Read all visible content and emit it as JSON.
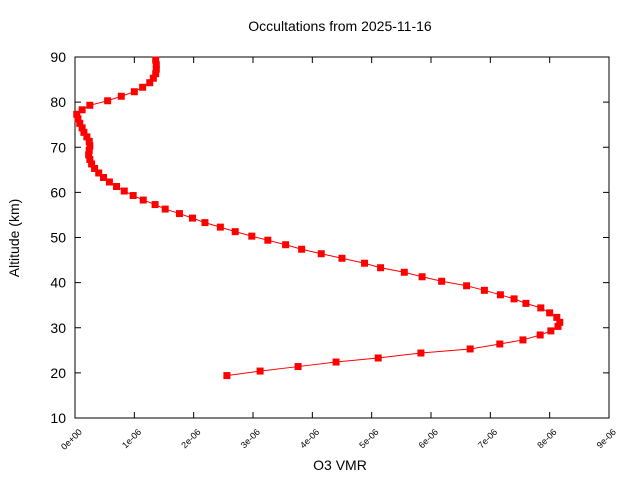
{
  "chart_data": {
    "type": "line",
    "title": "Occultations from 2025-11-16",
    "x_label": "O3 VMR",
    "y_label": "Altitude (km)",
    "color": "#ff0000",
    "x": [
      2.56e-06,
      3.12e-06,
      3.76e-06,
      4.4e-06,
      5.11e-06,
      5.83e-06,
      6.66e-06,
      7.16e-06,
      7.55e-06,
      7.84e-06,
      8.02e-06,
      8.14e-06,
      8.17e-06,
      8.12e-06,
      8e-06,
      7.85e-06,
      7.6e-06,
      7.4e-06,
      7.17e-06,
      6.9e-06,
      6.6e-06,
      6.18e-06,
      5.85e-06,
      5.55e-06,
      5.15e-06,
      4.88e-06,
      4.5e-06,
      4.15e-06,
      3.82e-06,
      3.55e-06,
      3.25e-06,
      2.98e-06,
      2.7e-06,
      2.45e-06,
      2.19e-06,
      1.98e-06,
      1.76e-06,
      1.52e-06,
      1.35e-06,
      1.15e-06,
      9.8e-07,
      8.3e-07,
      7e-07,
      5.8e-07,
      4.8e-07,
      4e-07,
      3.3e-07,
      2.8e-07,
      2.5e-07,
      2.3e-07,
      2.4e-07,
      2.5e-07,
      2.4e-07,
      2e-07,
      1.5e-07,
      1.2e-07,
      8e-08,
      5e-08,
      3e-08,
      1.2e-07,
      2.5e-07,
      5.5e-07,
      7.8e-07,
      1e-06,
      1.14e-06,
      1.26e-06,
      1.32e-06,
      1.36e-06,
      1.37e-06,
      1.37e-06,
      1.36e-06
    ],
    "values": [
      19.4,
      20.4,
      21.4,
      22.4,
      23.3,
      24.4,
      25.3,
      26.4,
      27.3,
      28.4,
      29.3,
      30.3,
      31.2,
      32.3,
      33.3,
      34.4,
      35.4,
      36.4,
      37.3,
      38.3,
      39.3,
      40.3,
      41.3,
      42.3,
      43.3,
      44.3,
      45.4,
      46.4,
      47.4,
      48.4,
      49.4,
      50.3,
      51.3,
      52.3,
      53.3,
      54.3,
      55.3,
      56.3,
      57.3,
      58.3,
      59.3,
      60.3,
      61.3,
      62.3,
      63.3,
      64.3,
      65.3,
      66.3,
      67.3,
      68.3,
      69.3,
      70.3,
      71.3,
      72.3,
      73.3,
      74.3,
      75.3,
      76.3,
      77.3,
      78.3,
      79.3,
      80.3,
      81.3,
      82.3,
      83.3,
      84.3,
      85.3,
      86.3,
      87.3,
      88.3,
      89.3
    ],
    "xlim": [
      0,
      9e-06
    ],
    "xticks": [
      {
        "value": 0,
        "label": "0e+00"
      },
      {
        "value": 1e-06,
        "label": "1e-06"
      },
      {
        "value": 2e-06,
        "label": "2e-06"
      },
      {
        "value": 3e-06,
        "label": "3e-06"
      },
      {
        "value": 4e-06,
        "label": "4e-06"
      },
      {
        "value": 5e-06,
        "label": "5e-06"
      },
      {
        "value": 6e-06,
        "label": "6e-06"
      },
      {
        "value": 7e-06,
        "label": "7e-06"
      },
      {
        "value": 8e-06,
        "label": "8e-06"
      },
      {
        "value": 9e-06,
        "label": "9e-06"
      }
    ],
    "ylim": [
      10,
      90
    ],
    "yticks": [
      10,
      20,
      30,
      40,
      50,
      60,
      70,
      80,
      90
    ],
    "grid": false
  }
}
